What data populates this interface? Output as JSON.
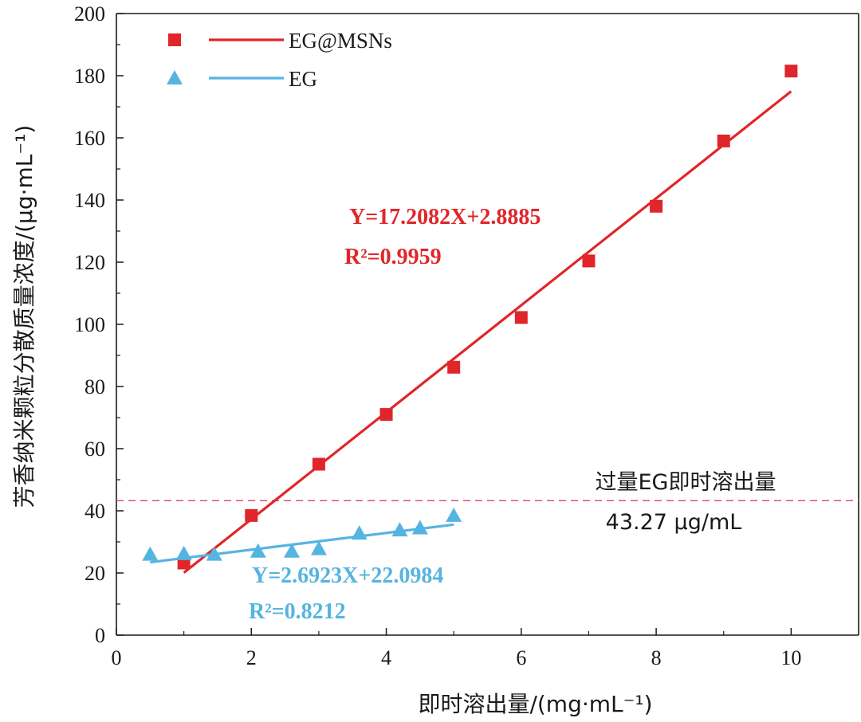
{
  "chart_data": {
    "type": "scatter",
    "xlabel": "即时溶出量/(mg·mL⁻¹)",
    "ylabel": "芳香纳米颗粒分散质量浓度/(μg·mL⁻¹)",
    "xlim": [
      0,
      11
    ],
    "ylim": [
      0,
      200
    ],
    "x_ticks": [
      "0",
      "2",
      "4",
      "6",
      "8",
      "10"
    ],
    "y_ticks": [
      "0",
      "20",
      "40",
      "60",
      "80",
      "100",
      "120",
      "140",
      "160",
      "180",
      "200"
    ],
    "grid": false,
    "legend_position": "top-left",
    "series": [
      {
        "name": "EG@MSNs",
        "marker": "square",
        "color": "#e0262a",
        "x": [
          1,
          2,
          3,
          4,
          5,
          6,
          7,
          8,
          9,
          10
        ],
        "y": [
          23.2,
          38.5,
          55,
          71,
          86.2,
          102.2,
          120.4,
          138,
          159,
          181.5
        ],
        "fit": {
          "slope": 17.2082,
          "intercept": 2.8885,
          "x_range": [
            1,
            10
          ],
          "equation": "Y=17.2082X+2.8885",
          "r2_label": "R²=0.9959"
        }
      },
      {
        "name": "EG",
        "marker": "triangle",
        "color": "#56b4e0",
        "x": [
          0.5,
          1,
          1.45,
          2.1,
          2.6,
          3,
          3.6,
          4.2,
          4.5,
          5
        ],
        "y": [
          26,
          26.2,
          26,
          27,
          27,
          27.8,
          32.8,
          33.8,
          34.5,
          38.5
        ],
        "fit": {
          "slope": 2.6923,
          "intercept": 22.0984,
          "x_range": [
            0.5,
            5
          ],
          "equation": "Y=2.6923X+22.0984",
          "r2_label": "R²=0.8212"
        }
      }
    ],
    "reference_line": {
      "y": 43.27,
      "color": "#d9527a",
      "label": "过量EG即时溶出量",
      "value_label": "43.27 μg/mL"
    }
  }
}
